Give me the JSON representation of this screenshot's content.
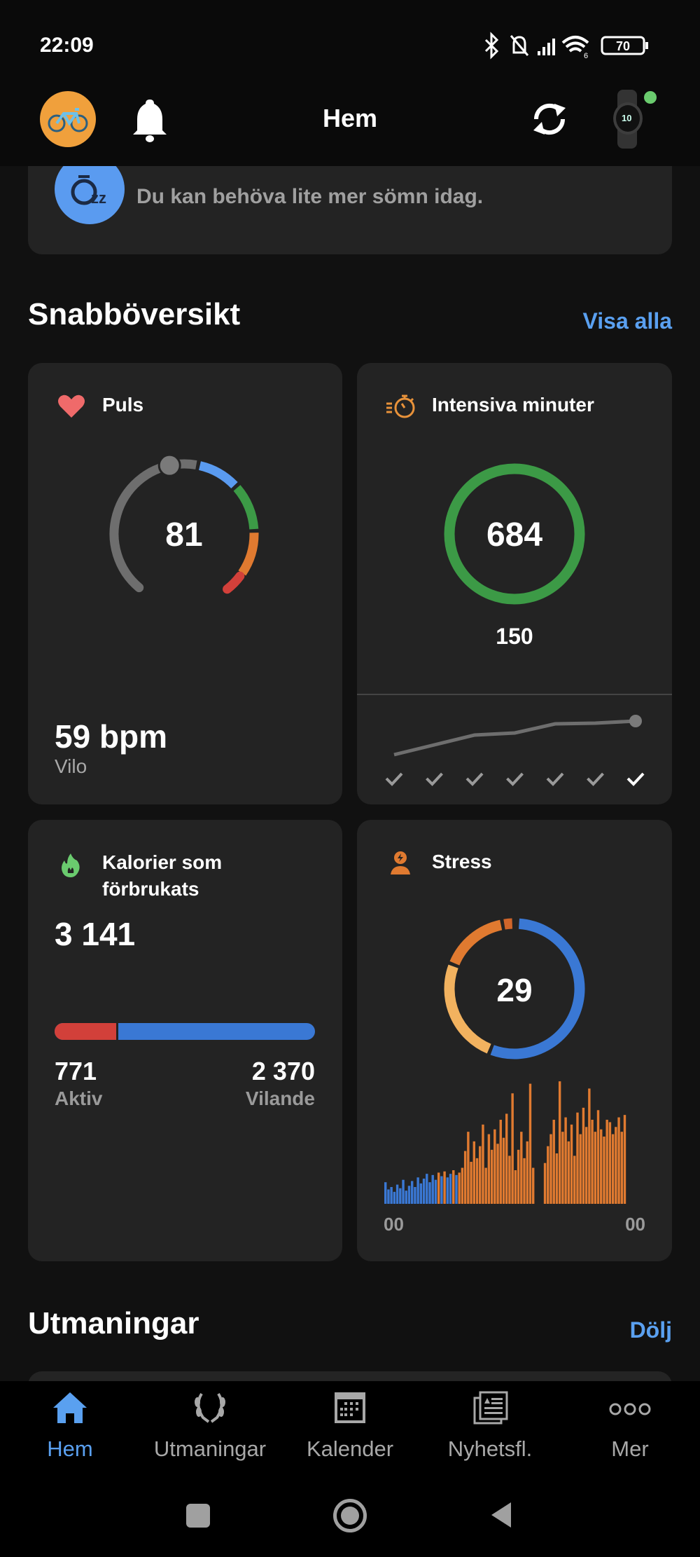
{
  "status_bar": {
    "time": "22:09",
    "battery": "70",
    "wifi_label": "6"
  },
  "header": {
    "title": "Hem"
  },
  "sleep_card": {
    "message": "Du kan behöva lite mer sömn idag."
  },
  "quick_overview": {
    "title": "Snabböversikt",
    "see_all": "Visa alla"
  },
  "pulse": {
    "title": "Puls",
    "current": "81",
    "resting_value": "59 bpm",
    "resting_label": "Vilo"
  },
  "intensity": {
    "title": "Intensiva minuter",
    "value": "684",
    "goal": "150",
    "weekly_trend": [
      0,
      14,
      28,
      31,
      44,
      45,
      48
    ],
    "days_completed": [
      true,
      true,
      true,
      true,
      true,
      true,
      true
    ]
  },
  "calories": {
    "title_line1": "Kalorier som",
    "title_line2": "förbrukats",
    "total": "3 141",
    "active_value": "771",
    "active_label": "Aktiv",
    "resting_value": "2 370",
    "resting_label": "Vilande",
    "active_fraction": 0.245,
    "colors": {
      "active": "#d2403a",
      "resting": "#3a78d4"
    }
  },
  "stress": {
    "title": "Stress",
    "value": "29",
    "axis_start": "00",
    "axis_end": "00",
    "ring_segments": [
      {
        "level": "rest",
        "color": "#3a78d4",
        "from": 4,
        "to": 200
      },
      {
        "level": "low",
        "color": "#f2b25f",
        "from": 203,
        "to": 290
      },
      {
        "level": "medium",
        "color": "#e07a30",
        "from": 293,
        "to": 348
      },
      {
        "level": "high",
        "color": "#d0652a",
        "from": 351,
        "to": 358
      }
    ],
    "timeline": [
      18,
      12,
      14,
      10,
      16,
      13,
      20,
      11,
      15,
      19,
      14,
      22,
      17,
      21,
      25,
      18,
      24,
      20,
      26,
      23,
      27,
      22,
      25,
      28,
      24,
      26,
      30,
      44,
      60,
      35,
      52,
      38,
      48,
      66,
      30,
      58,
      45,
      62,
      50,
      70,
      55,
      75,
      40,
      92,
      28,
      45,
      60,
      38,
      52,
      100,
      30,
      0,
      0,
      0,
      34,
      48,
      58,
      70,
      42,
      102,
      60,
      72,
      52,
      66,
      40,
      76,
      58,
      80,
      64,
      96,
      70,
      60,
      78,
      62,
      56,
      70,
      68,
      58,
      64,
      72,
      60,
      74
    ],
    "threshold": 25,
    "colors": {
      "rest": "#3a78d4",
      "stress": "#e07a30"
    }
  },
  "challenges": {
    "title": "Utmaningar",
    "hide": "Dölj"
  },
  "bottom_nav": [
    {
      "label": "Hem",
      "icon": "home-icon",
      "active": true
    },
    {
      "label": "Utmaningar",
      "icon": "laurel-icon"
    },
    {
      "label": "Kalender",
      "icon": "calendar-icon"
    },
    {
      "label": "Nyhetsfl.",
      "icon": "newsfeed-icon"
    },
    {
      "label": "Mer",
      "icon": "more-icon"
    }
  ],
  "colors": {
    "accent": "#5aa0f0",
    "card": "#232323",
    "background": "#111111"
  }
}
